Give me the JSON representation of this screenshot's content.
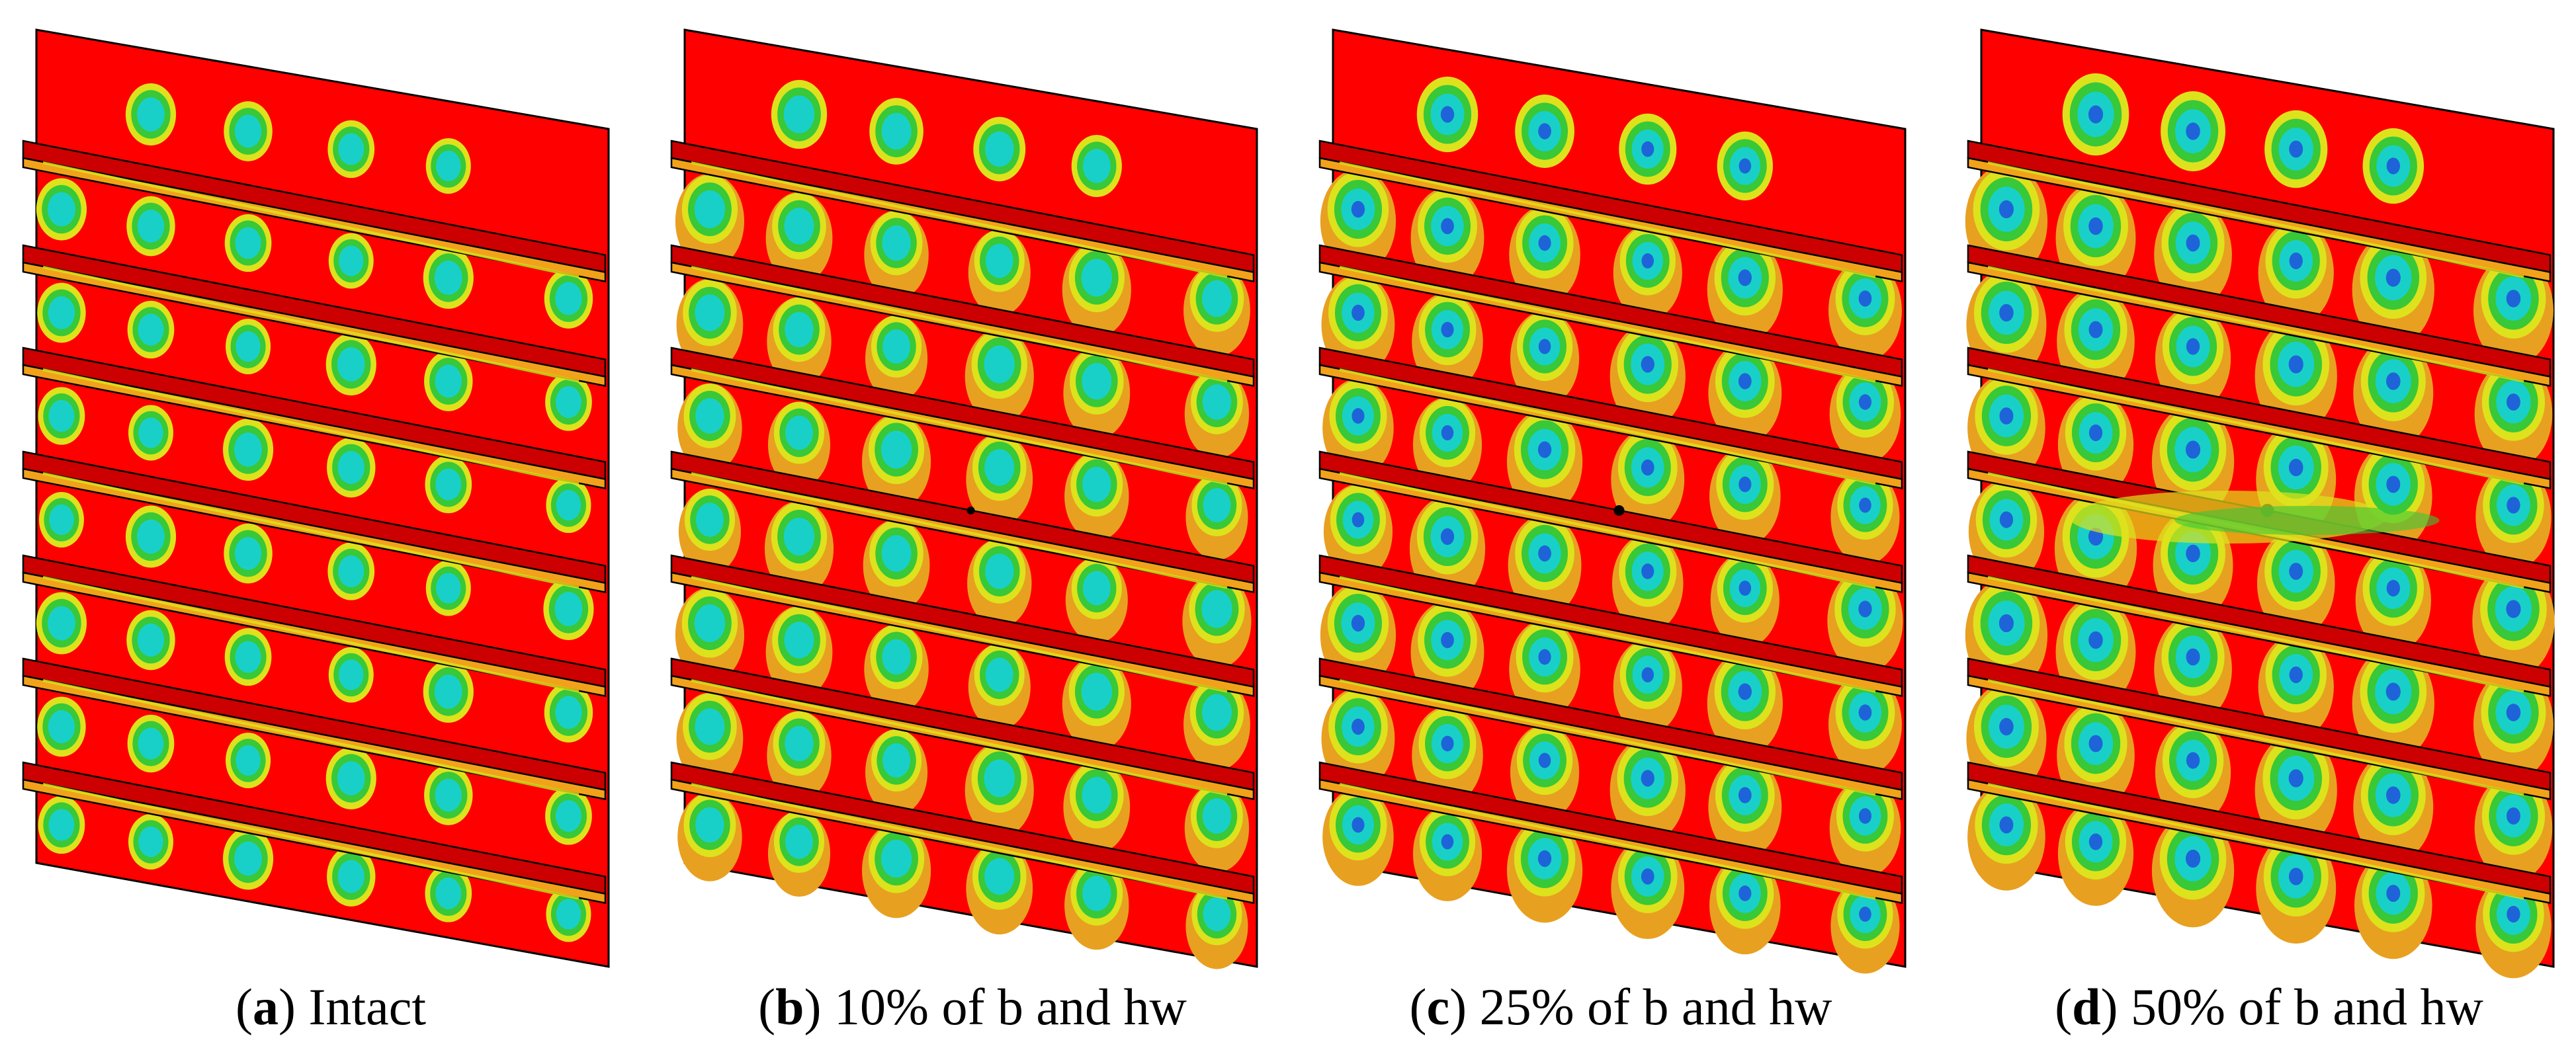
{
  "figure": {
    "panels": [
      {
        "id": "a",
        "letter": "a",
        "caption": "Intact",
        "damage": "none"
      },
      {
        "id": "b",
        "letter": "b",
        "caption": "10% of b and hw",
        "damage": "small"
      },
      {
        "id": "c",
        "letter": "c",
        "caption": "25% of b and hw",
        "damage": "medium"
      },
      {
        "id": "d",
        "letter": "d",
        "caption": "50% of b and hw",
        "damage": "large"
      }
    ],
    "colors": {
      "background": "#ff0000",
      "stiffener_top": "#cc0000",
      "stiffener_face": "#f2a21a",
      "contour_orange": "#e8a020",
      "contour_yellow": "#dde21c",
      "contour_green": "#38c838",
      "contour_cyan": "#19d0c8",
      "contour_blue": "#1e64d8",
      "edge": "#000000"
    }
  }
}
